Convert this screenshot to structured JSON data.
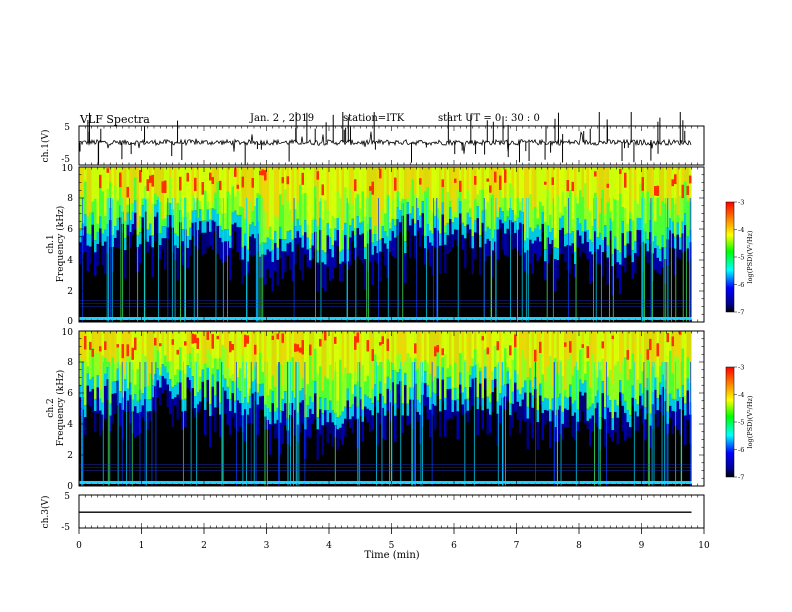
{
  "header": {
    "title": "VLF Spectra",
    "date": "Jan. 2 , 2019",
    "station": "station=ITK",
    "start": "start UT =  0 : 30 : 0"
  },
  "chart_data": [
    {
      "type": "line",
      "panel": "ch1-waveform",
      "ylabel": "ch.1(V)",
      "y_ticks": [
        "5",
        "-5"
      ],
      "ylim": [
        -5,
        5
      ],
      "xlim": [
        0,
        10
      ],
      "series": [
        {
          "values_description": null,
          "baseline": 0,
          "typical_amplitude": 0.8,
          "spike_max": 5
        }
      ],
      "color": "#000000"
    },
    {
      "type": "heatmap",
      "panel": "ch1-spectrogram",
      "ylabel": "ch.1 Frequency (kHz)",
      "y_ticks": [
        "0",
        "2",
        "4",
        "6",
        "8",
        "10"
      ],
      "ylim": [
        0,
        10
      ],
      "xlim": [
        0,
        9.8
      ],
      "colorbar": {
        "label": "log(PSD)(V²/Hz)",
        "ticks": [
          "-3",
          "-4",
          "-5",
          "-6",
          "-7"
        ],
        "range": [
          -7,
          -3
        ]
      },
      "noise_floor_khz": 5.5
    },
    {
      "type": "heatmap",
      "panel": "ch2-spectrogram",
      "ylabel": "ch.2 Frequency (kHz)",
      "y_ticks": [
        "0",
        "2",
        "4",
        "6",
        "8",
        "10"
      ],
      "ylim": [
        0,
        10
      ],
      "xlim": [
        0,
        9.8
      ],
      "colorbar": {
        "label": "log(PSD)(V²/Hz)",
        "ticks": [
          "-3",
          "-4",
          "-5",
          "-6",
          "-7"
        ],
        "range": [
          -7,
          -3
        ]
      },
      "noise_floor_khz": 5.5
    },
    {
      "type": "line",
      "panel": "ch3-waveform",
      "ylabel": "ch.3(V)",
      "y_ticks": [
        "5",
        "-5"
      ],
      "ylim": [
        -5,
        5
      ],
      "xlim": [
        0,
        10
      ],
      "series": [
        {
          "baseline": 0
        }
      ],
      "color": "#000000"
    }
  ],
  "x_axis": {
    "label": "Time  (min)",
    "ticks": [
      "0",
      "1",
      "2",
      "3",
      "4",
      "5",
      "6",
      "7",
      "8",
      "9",
      "10"
    ],
    "range": [
      0,
      10
    ]
  }
}
